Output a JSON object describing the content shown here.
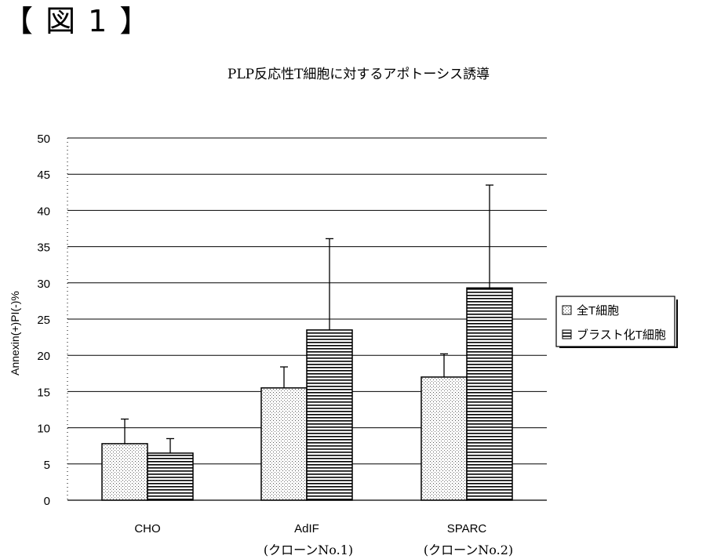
{
  "figure_label": "【 図 1 】",
  "chart_data": {
    "type": "bar",
    "title": "PLP反応性T細胞に対するアポトーシス誘導",
    "ylabel": "Annexin(+)PI(-)%",
    "xlabel": "",
    "ylim": [
      0,
      50
    ],
    "yticks": [
      0,
      5,
      10,
      15,
      20,
      25,
      30,
      35,
      40,
      45,
      50
    ],
    "categories": [
      "CHO",
      "AdIF",
      "SPARC"
    ],
    "category_sublabels": [
      "",
      "(クローンNo.1)",
      "(クローンNo.2)"
    ],
    "series": [
      {
        "name": "全T細胞",
        "values": [
          7.8,
          15.5,
          17.0
        ],
        "errors": [
          3.4,
          2.9,
          3.2
        ],
        "fill": "dotted"
      },
      {
        "name": "ブラスト化T細胞",
        "values": [
          6.5,
          23.5,
          29.3
        ],
        "errors": [
          2.0,
          12.6,
          14.2
        ],
        "fill": "horizontal-lines"
      }
    ],
    "grid": true,
    "legend_position": "right"
  }
}
